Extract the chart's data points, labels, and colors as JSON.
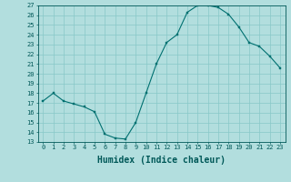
{
  "xlabel": "Humidex (Indice chaleur)",
  "x": [
    0,
    1,
    2,
    3,
    4,
    5,
    6,
    7,
    8,
    9,
    10,
    11,
    12,
    13,
    14,
    15,
    16,
    17,
    18,
    19,
    20,
    21,
    22,
    23
  ],
  "y": [
    17.2,
    18.0,
    17.2,
    16.9,
    16.6,
    16.1,
    13.8,
    13.4,
    13.3,
    15.0,
    18.0,
    21.0,
    23.2,
    24.0,
    26.3,
    27.0,
    27.0,
    26.8,
    26.1,
    24.8,
    23.2,
    22.8,
    21.8,
    20.6
  ],
  "ylim": [
    13,
    27
  ],
  "yticks": [
    13,
    14,
    15,
    16,
    17,
    18,
    19,
    20,
    21,
    22,
    23,
    24,
    25,
    26,
    27
  ],
  "xticks": [
    0,
    1,
    2,
    3,
    4,
    5,
    6,
    7,
    8,
    9,
    10,
    11,
    12,
    13,
    14,
    15,
    16,
    17,
    18,
    19,
    20,
    21,
    22,
    23
  ],
  "line_color": "#007070",
  "marker_color": "#007070",
  "bg_color": "#b2dede",
  "grid_color": "#88c8c8",
  "text_color": "#005858",
  "tick_label_fontsize": 5.0,
  "xlabel_fontsize": 7.0
}
